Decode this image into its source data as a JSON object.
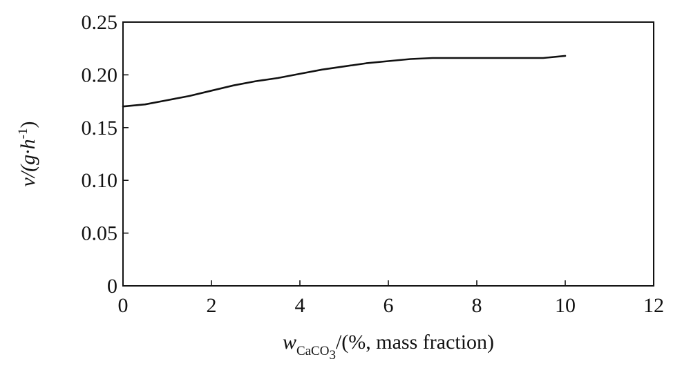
{
  "chart_data": {
    "type": "line",
    "title": "",
    "xlabel": {
      "var": "w",
      "sub": "CaCO",
      "subsub": "3",
      "suffix": "/(%, mass fraction)"
    },
    "ylabel": {
      "prefix": "v/(g·h",
      "sup": "-1",
      "suffix": ")"
    },
    "xlim": [
      0,
      12
    ],
    "ylim": [
      0,
      0.25
    ],
    "x_ticks": [
      "0",
      "2",
      "4",
      "6",
      "8",
      "10",
      "12"
    ],
    "y_ticks": [
      "0",
      "0.05",
      "0.10",
      "0.15",
      "0.20",
      "0.25"
    ],
    "grid": false,
    "legend": "none",
    "series": [
      {
        "color": "#111111",
        "x": [
          0,
          0.5,
          1,
          1.5,
          2,
          2.5,
          3,
          3.5,
          4,
          4.5,
          5,
          5.5,
          6,
          6.5,
          7,
          7.5,
          8,
          8.5,
          9,
          9.5,
          10
        ],
        "y": [
          0.17,
          0.172,
          0.176,
          0.18,
          0.185,
          0.19,
          0.194,
          0.197,
          0.201,
          0.205,
          0.208,
          0.211,
          0.213,
          0.215,
          0.216,
          0.216,
          0.216,
          0.216,
          0.216,
          0.216,
          0.218
        ]
      }
    ]
  }
}
